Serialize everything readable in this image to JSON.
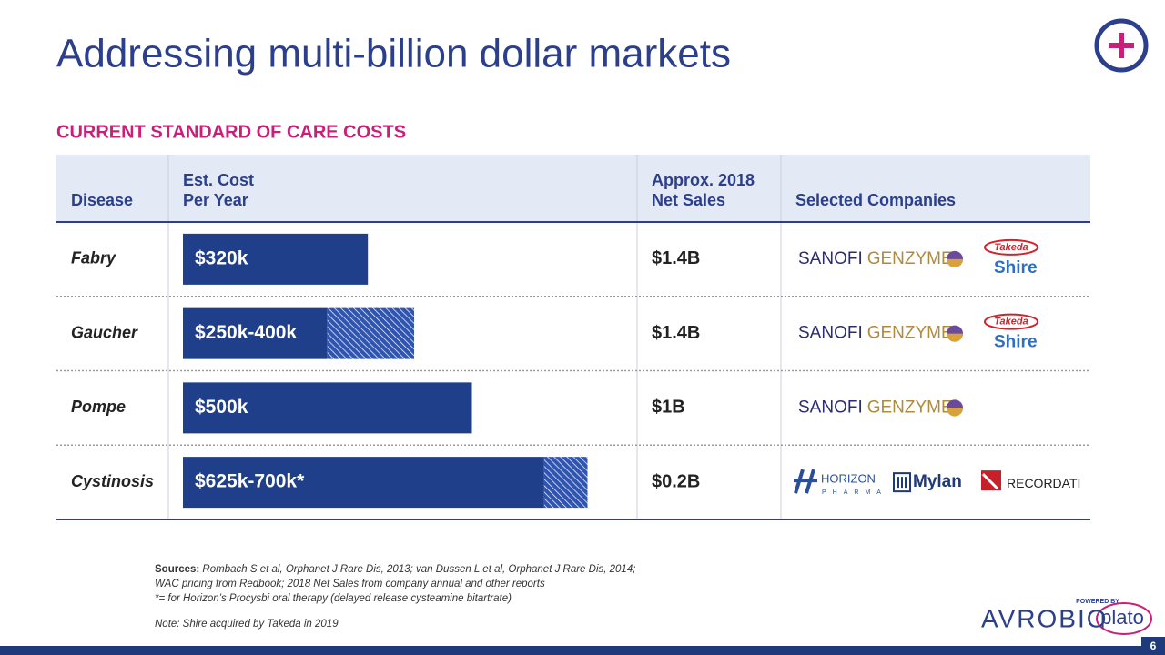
{
  "header": {
    "title": "Addressing multi-billion dollar markets"
  },
  "subtitle": "CURRENT STANDARD OF CARE COSTS",
  "table": {
    "columns": [
      [
        "Disease"
      ],
      [
        "Est. Cost",
        "Per Year"
      ],
      [
        "Approx. 2018",
        "Net Sales"
      ],
      [
        "Selected Companies"
      ]
    ],
    "rows": [
      {
        "disease": "Fabry",
        "cost_label": "$320k",
        "cost": {
          "low": 320
        },
        "sales": "$1.4B",
        "companies": [
          {
            "logo": "sanofi",
            "texts": [
              "SANOFI",
              "GENZYME"
            ]
          },
          {
            "logo": "takeda",
            "texts": [
              "Takeda",
              "Shire"
            ]
          }
        ]
      },
      {
        "disease": "Gaucher",
        "cost_label": "$250k-400k",
        "cost": {
          "low": 250,
          "high": 400
        },
        "sales": "$1.4B",
        "companies": [
          {
            "logo": "sanofi",
            "texts": [
              "SANOFI",
              "GENZYME"
            ]
          },
          {
            "logo": "takeda",
            "texts": [
              "Takeda",
              "Shire"
            ]
          }
        ]
      },
      {
        "disease": "Pompe",
        "cost_label": "$500k",
        "cost": {
          "low": 500
        },
        "sales": "$1B",
        "companies": [
          {
            "logo": "sanofi",
            "texts": [
              "SANOFI",
              "GENZYME"
            ]
          }
        ]
      },
      {
        "disease": "Cystinosis",
        "cost_label": "$625k-700k*",
        "cost": {
          "low": 625,
          "high": 700
        },
        "sales": "$0.2B",
        "companies": [
          {
            "logo": "horizon",
            "texts": [
              "HORIZON",
              "PHARMA"
            ]
          },
          {
            "logo": "mylan",
            "texts": [
              "Mylan"
            ]
          },
          {
            "logo": "recordati",
            "texts": [
              "RECORDATI"
            ]
          }
        ]
      }
    ]
  },
  "sources": {
    "label": "Sources:",
    "lines": [
      " Rombach S et al, Orphanet J Rare Dis, 2013; van Dussen L et al, Orphanet J Rare Dis, 2014;",
      "WAC pricing from Redbook; 2018 Net Sales from company annual and other reports",
      "*= for Horizon’s Procysbi oral therapy (delayed release cysteamine bitartrate)"
    ]
  },
  "note": "Note: Shire acquired by Takeda in 2019",
  "footer": {
    "brand": "AVROBIO",
    "powered_by": "POWERED BY",
    "platform": "plato",
    "page": "6"
  }
}
